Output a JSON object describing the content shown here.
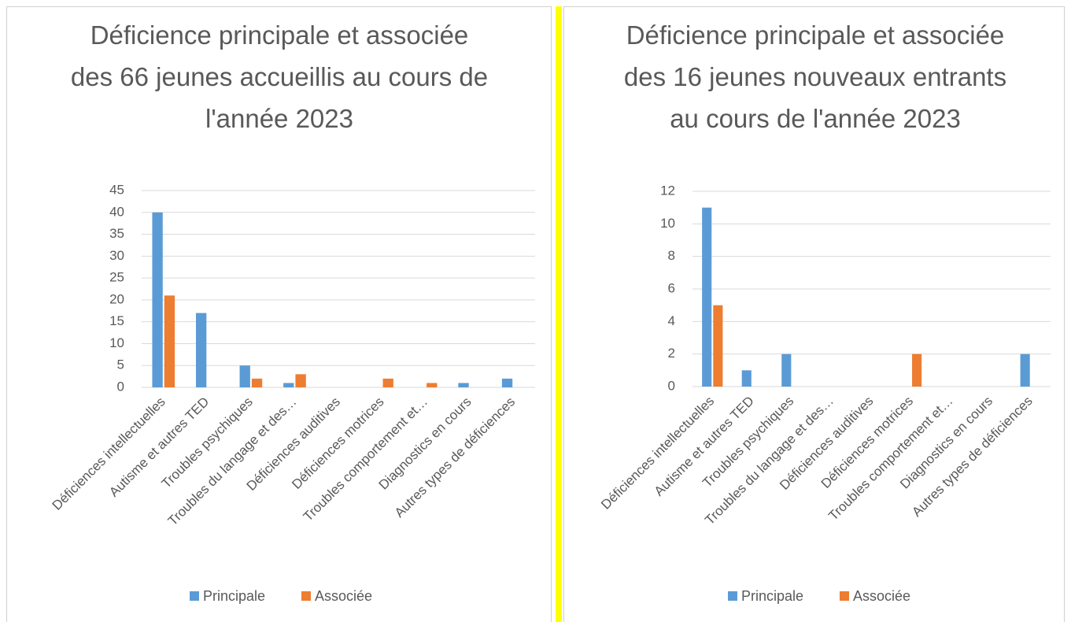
{
  "chart_data": [
    {
      "type": "bar",
      "title": [
        "Déficience principale et associée",
        "des 66 jeunes accueillis au cours de",
        "l'année 2023"
      ],
      "categories": [
        "Déficiences intellectuelles",
        "Autisme et autres TED",
        "Troubles psychiques",
        "Troubles du langage et des…",
        "Déficiences auditives",
        "Déficiences motrices",
        "Troubles comportement et…",
        "Diagnostics en cours",
        "Autres types de déficiences"
      ],
      "series": [
        {
          "name": "Principale",
          "color": "#5b9bd5",
          "values": [
            40,
            17,
            5,
            1,
            0,
            0,
            0,
            1,
            2
          ]
        },
        {
          "name": "Associée",
          "color": "#ed7d31",
          "values": [
            21,
            0,
            2,
            3,
            0,
            2,
            1,
            0,
            0
          ]
        }
      ],
      "ylim": [
        0,
        45
      ],
      "yticks": [
        0,
        5,
        10,
        15,
        20,
        25,
        30,
        35,
        40,
        45
      ],
      "grid": true,
      "legend": "bottom"
    },
    {
      "type": "bar",
      "title": [
        "Déficience principale et associée",
        "des 16 jeunes nouveaux entrants",
        "au cours de l'année 2023"
      ],
      "categories": [
        "Déficiences intellectuelles",
        "Autisme et autres TED",
        "Troubles psychiques",
        "Troubles du langage et des…",
        "Déficiences auditives",
        "Déficiences motrices",
        "Troubles comportement et…",
        "Diagnostics en cours",
        "Autres types de déficiences"
      ],
      "series": [
        {
          "name": "Principale",
          "color": "#5b9bd5",
          "values": [
            11,
            1,
            2,
            0,
            0,
            0,
            0,
            0,
            2
          ]
        },
        {
          "name": "Associée",
          "color": "#ed7d31",
          "values": [
            5,
            0,
            0,
            0,
            0,
            2,
            0,
            0,
            0
          ]
        }
      ],
      "ylim": [
        0,
        12
      ],
      "yticks": [
        0,
        2,
        4,
        6,
        8,
        10,
        12
      ],
      "grid": true,
      "legend": "bottom"
    }
  ]
}
